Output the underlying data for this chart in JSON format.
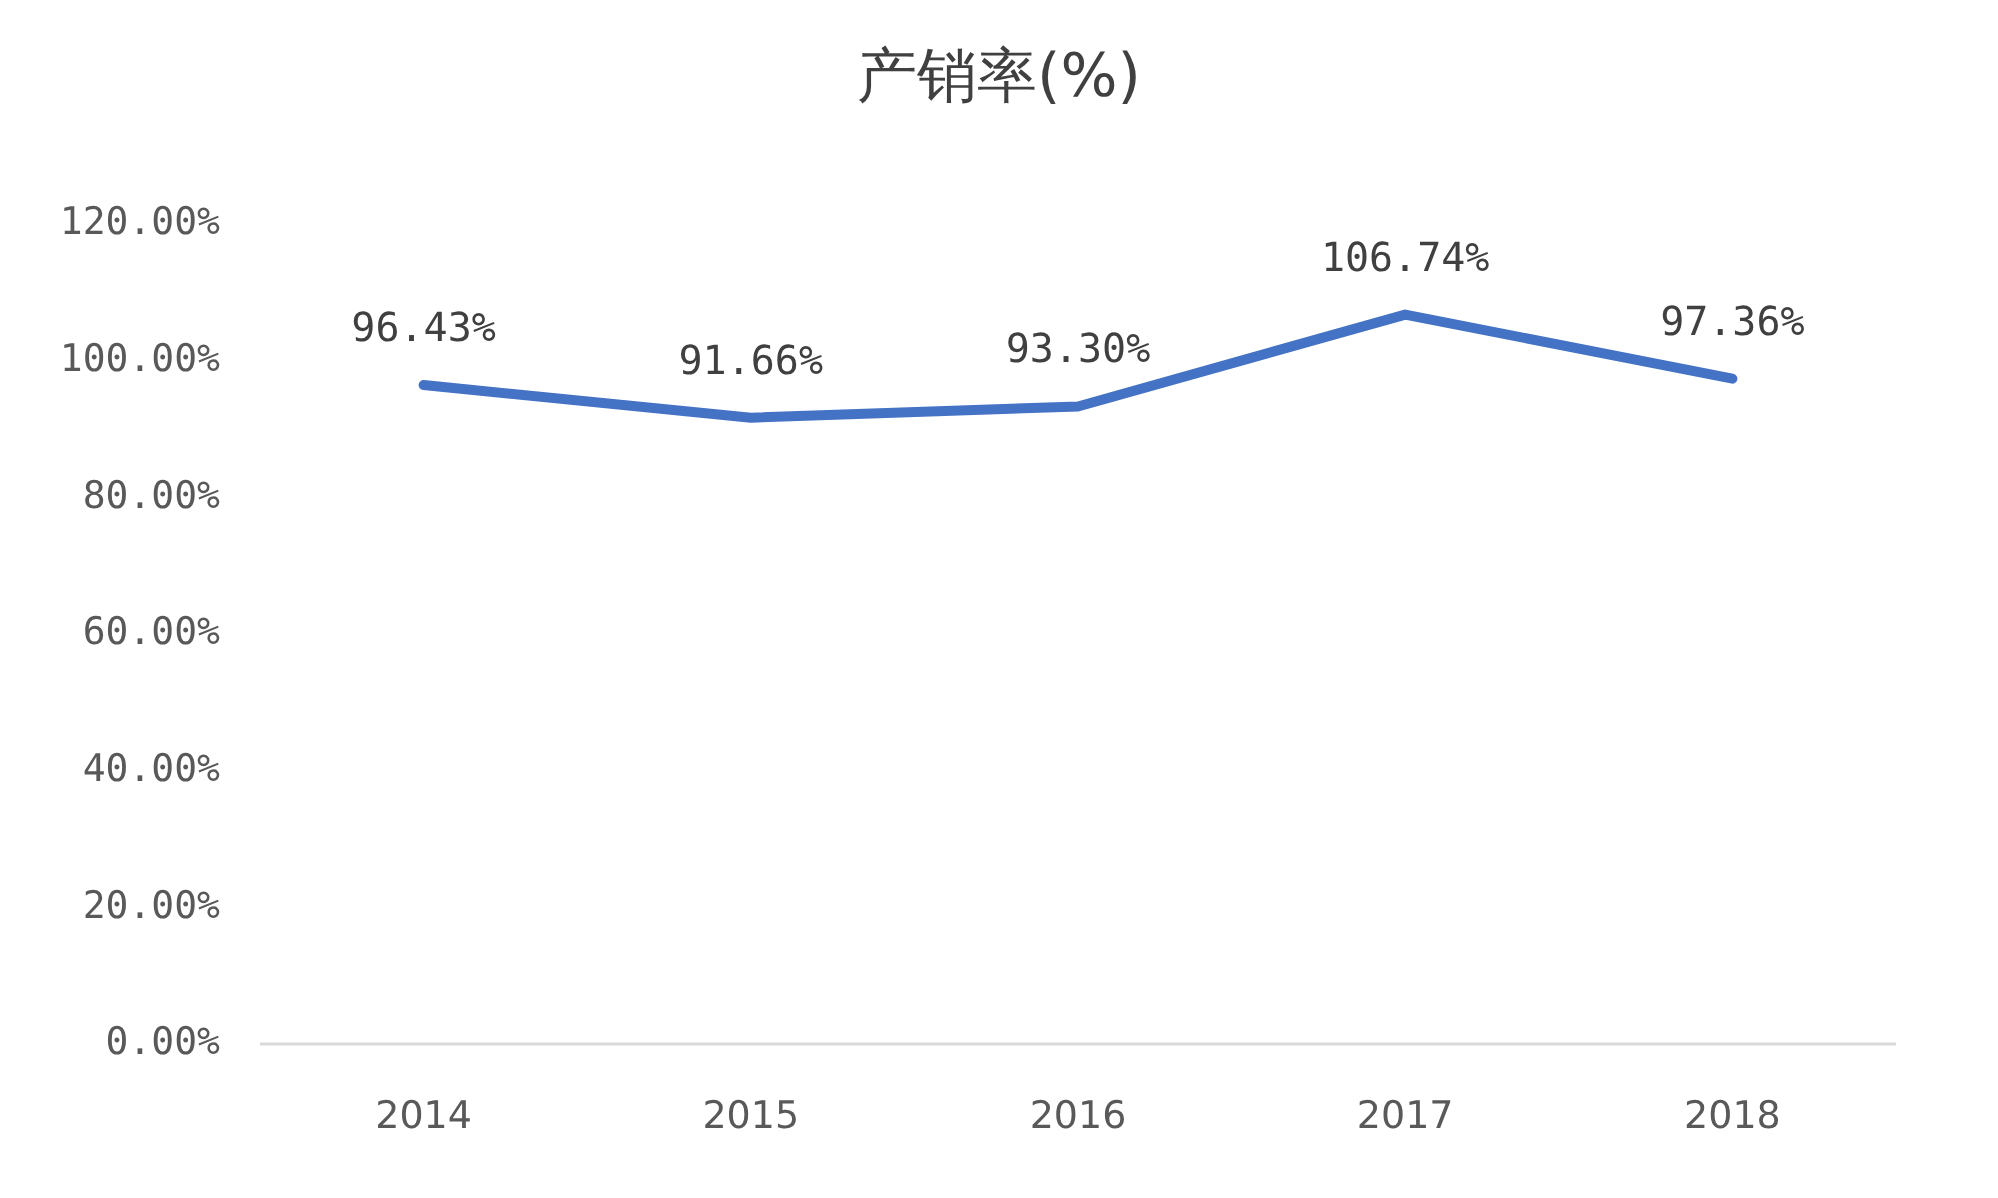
{
  "chart_data": {
    "type": "line",
    "title": "产销率(%)",
    "categories": [
      "2014",
      "2015",
      "2016",
      "2017",
      "2018"
    ],
    "values": [
      96.43,
      91.66,
      93.3,
      106.74,
      97.36
    ],
    "value_labels": [
      "96.43%",
      "91.66%",
      "93.30%",
      "106.74%",
      "97.36%"
    ],
    "color": "#4472c4",
    "ylim": [
      0,
      120
    ],
    "yticks": [
      {
        "value": 0,
        "label": "0.00%"
      },
      {
        "value": 20,
        "label": "20.00%"
      },
      {
        "value": 40,
        "label": "40.00%"
      },
      {
        "value": 60,
        "label": "60.00%"
      },
      {
        "value": 80,
        "label": "80.00%"
      },
      {
        "value": 100,
        "label": "100.00%"
      },
      {
        "value": 120,
        "label": "120.00%"
      }
    ]
  }
}
